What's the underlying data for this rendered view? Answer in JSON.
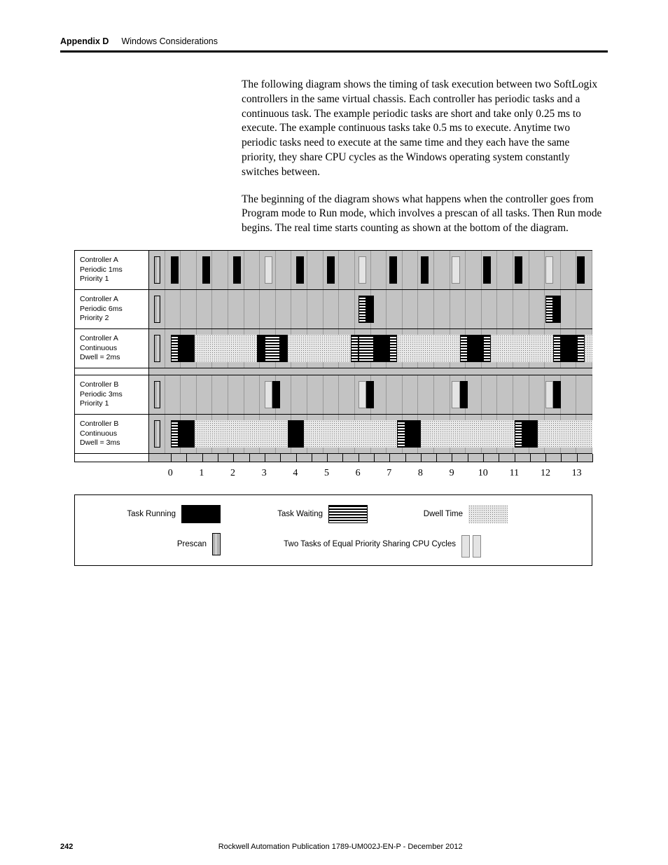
{
  "header": {
    "appendix": "Appendix D",
    "section": "Windows Considerations"
  },
  "paragraphs": [
    "The following diagram shows the timing of task execution between two SoftLogix controllers in the same virtual chassis. Each controller has periodic tasks and a continuous task. The example periodic tasks are short and take only 0.25 ms to execute. The example continuous tasks take 0.5 ms to execute. Anytime two periodic tasks need to execute at the same time and they each have the same priority, they share CPU cycles as the Windows operating system constantly switches between.",
    "The beginning of the diagram shows what happens when the controller goes from Program mode to Run mode, which involves a prescan of all tasks. Then Run mode begins. The real time starts counting as shown at the bottom of the diagram."
  ],
  "chart": {
    "time_start": -0.7,
    "time_end": 13.5,
    "grid_step": 0.5,
    "axis_labels": [
      0,
      1,
      2,
      3,
      4,
      5,
      6,
      7,
      8,
      9,
      10,
      11,
      12,
      13
    ],
    "rows": [
      {
        "label": [
          "Controller A",
          "Periodic 1ms",
          "Priority 1"
        ],
        "bars": [
          {
            "t": -0.55,
            "w": 0.22,
            "style": "prescan"
          },
          {
            "t": 0.0,
            "w": 0.25,
            "style": "black"
          },
          {
            "t": 1.0,
            "w": 0.25,
            "style": "black"
          },
          {
            "t": 2.0,
            "w": 0.25,
            "style": "black"
          },
          {
            "t": 3.0,
            "w": 0.25,
            "style": "share"
          },
          {
            "t": 4.0,
            "w": 0.25,
            "style": "black"
          },
          {
            "t": 5.0,
            "w": 0.25,
            "style": "black"
          },
          {
            "t": 6.0,
            "w": 0.25,
            "style": "share"
          },
          {
            "t": 7.0,
            "w": 0.25,
            "style": "black"
          },
          {
            "t": 8.0,
            "w": 0.25,
            "style": "black"
          },
          {
            "t": 9.0,
            "w": 0.25,
            "style": "share"
          },
          {
            "t": 10.0,
            "w": 0.25,
            "style": "black"
          },
          {
            "t": 11.0,
            "w": 0.25,
            "style": "black"
          },
          {
            "t": 12.0,
            "w": 0.25,
            "style": "share"
          },
          {
            "t": 13.0,
            "w": 0.25,
            "style": "black"
          }
        ]
      },
      {
        "label": [
          "Controller A",
          "Periodic 6ms",
          "Priority 2"
        ],
        "bars": [
          {
            "t": -0.55,
            "w": 0.22,
            "style": "prescan"
          },
          {
            "t": 6.0,
            "w": 0.25,
            "style": "stripes"
          },
          {
            "t": 6.25,
            "w": 0.25,
            "style": "black"
          },
          {
            "t": 12.0,
            "w": 0.25,
            "style": "stripes"
          },
          {
            "t": 12.25,
            "w": 0.25,
            "style": "black"
          }
        ]
      },
      {
        "label": [
          "Controller A",
          "Continuous",
          "Dwell = 2ms"
        ],
        "bars": [
          {
            "t": -0.55,
            "w": 0.22,
            "style": "prescan"
          },
          {
            "t": 0.0,
            "w": 0.25,
            "style": "stripes"
          },
          {
            "t": 0.25,
            "w": 0.5,
            "style": "black"
          },
          {
            "t": 0.75,
            "w": 2.0,
            "style": "dots"
          },
          {
            "t": 2.75,
            "w": 0.25,
            "style": "black"
          },
          {
            "t": 3.0,
            "w": 0.5,
            "style": "stripes"
          },
          {
            "t": 3.5,
            "w": 0.25,
            "style": "black"
          },
          {
            "t": 3.75,
            "w": 2.0,
            "style": "dots"
          },
          {
            "t": 5.75,
            "w": 0.25,
            "style": "stripes"
          },
          {
            "t": 6.0,
            "w": 0.5,
            "style": "stripes"
          },
          {
            "t": 6.5,
            "w": 0.5,
            "style": "black"
          },
          {
            "t": 7.0,
            "w": 0.25,
            "style": "stripes"
          },
          {
            "t": 7.25,
            "w": 2.0,
            "style": "dots"
          },
          {
            "t": 9.25,
            "w": 0.25,
            "style": "stripes"
          },
          {
            "t": 9.5,
            "w": 0.5,
            "style": "black"
          },
          {
            "t": 10.0,
            "w": 0.25,
            "style": "stripes"
          },
          {
            "t": 10.25,
            "w": 2.0,
            "style": "dots"
          },
          {
            "t": 12.25,
            "w": 0.25,
            "style": "stripes"
          },
          {
            "t": 12.5,
            "w": 0.5,
            "style": "black"
          },
          {
            "t": 13.0,
            "w": 0.25,
            "style": "stripes"
          },
          {
            "t": 13.25,
            "w": 0.25,
            "style": "dots"
          }
        ]
      },
      {
        "gap": true
      },
      {
        "label": [
          "Controller B",
          "Periodic 3ms",
          "Priority 1"
        ],
        "bars": [
          {
            "t": -0.55,
            "w": 0.22,
            "style": "prescan"
          },
          {
            "t": 3.0,
            "w": 0.25,
            "style": "share"
          },
          {
            "t": 3.25,
            "w": 0.25,
            "style": "black"
          },
          {
            "t": 6.0,
            "w": 0.25,
            "style": "share"
          },
          {
            "t": 6.25,
            "w": 0.25,
            "style": "black"
          },
          {
            "t": 9.0,
            "w": 0.25,
            "style": "share"
          },
          {
            "t": 9.25,
            "w": 0.25,
            "style": "black"
          },
          {
            "t": 12.0,
            "w": 0.25,
            "style": "share"
          },
          {
            "t": 12.25,
            "w": 0.25,
            "style": "black"
          }
        ]
      },
      {
        "label": [
          "Controller B",
          "Continuous",
          "Dwell = 3ms"
        ],
        "bars": [
          {
            "t": -0.55,
            "w": 0.22,
            "style": "prescan"
          },
          {
            "t": 0.0,
            "w": 0.25,
            "style": "stripes"
          },
          {
            "t": 0.25,
            "w": 0.5,
            "style": "black"
          },
          {
            "t": 0.75,
            "w": 3.0,
            "style": "dots"
          },
          {
            "t": 3.75,
            "w": 0.5,
            "style": "black"
          },
          {
            "t": 4.25,
            "w": 3.0,
            "style": "dots"
          },
          {
            "t": 7.25,
            "w": 0.25,
            "style": "stripes"
          },
          {
            "t": 7.5,
            "w": 0.5,
            "style": "black"
          },
          {
            "t": 8.0,
            "w": 3.0,
            "style": "dots"
          },
          {
            "t": 11.0,
            "w": 0.25,
            "style": "stripes"
          },
          {
            "t": 11.25,
            "w": 0.5,
            "style": "black"
          },
          {
            "t": 11.75,
            "w": 1.75,
            "style": "dots"
          }
        ]
      }
    ]
  },
  "legend": {
    "running": "Task Running",
    "waiting": "Task Waiting",
    "dwell": "Dwell Time",
    "prescan": "Prescan",
    "sharing": "Two Tasks of Equal Priority Sharing CPU Cycles"
  },
  "footer": {
    "page": "242",
    "pub": "Rockwell Automation Publication 1789-UM002J-EN-P - December 2012"
  }
}
